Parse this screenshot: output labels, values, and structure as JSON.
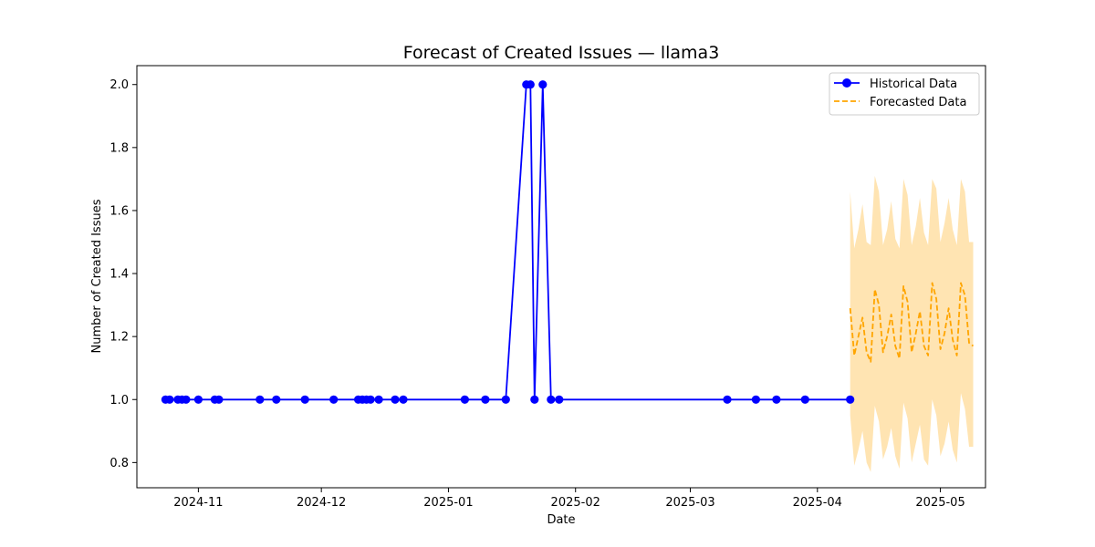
{
  "chart_data": {
    "type": "line",
    "title": "Forecast of Created Issues — llama3",
    "xlabel": "Date",
    "ylabel": "Number of Created Issues",
    "xlim": [
      "2024-10-17",
      "2025-05-12"
    ],
    "ylim": [
      0.72,
      2.06
    ],
    "x_ticks": [
      {
        "date": "2024-11-01",
        "label": "2024-11"
      },
      {
        "date": "2024-12-01",
        "label": "2024-12"
      },
      {
        "date": "2025-01-01",
        "label": "2025-01"
      },
      {
        "date": "2025-02-01",
        "label": "2025-02"
      },
      {
        "date": "2025-03-01",
        "label": "2025-03"
      },
      {
        "date": "2025-04-01",
        "label": "2025-04"
      },
      {
        "date": "2025-05-01",
        "label": "2025-05"
      }
    ],
    "y_ticks": [
      {
        "value": 0.8,
        "label": "0.8"
      },
      {
        "value": 1.0,
        "label": "1.0"
      },
      {
        "value": 1.2,
        "label": "1.2"
      },
      {
        "value": 1.4,
        "label": "1.4"
      },
      {
        "value": 1.6,
        "label": "1.6"
      },
      {
        "value": 1.8,
        "label": "1.8"
      },
      {
        "value": 2.0,
        "label": "2.0"
      }
    ],
    "grid": false,
    "legend": "upper right",
    "series": [
      {
        "name": "Historical Data",
        "color": "#0000ff",
        "style": "solid",
        "marker": "circle",
        "x": [
          "2024-10-24",
          "2024-10-25",
          "2024-10-27",
          "2024-10-28",
          "2024-10-29",
          "2024-11-01",
          "2024-11-05",
          "2024-11-06",
          "2024-11-16",
          "2024-11-20",
          "2024-11-27",
          "2024-12-04",
          "2024-12-10",
          "2024-12-11",
          "2024-12-12",
          "2024-12-13",
          "2024-12-15",
          "2024-12-19",
          "2024-12-21",
          "2025-01-05",
          "2025-01-10",
          "2025-01-15",
          "2025-01-20",
          "2025-01-21",
          "2025-01-22",
          "2025-01-24",
          "2025-01-26",
          "2025-01-28",
          "2025-03-10",
          "2025-03-17",
          "2025-03-22",
          "2025-03-29",
          "2025-04-09"
        ],
        "y": [
          1,
          1,
          1,
          1,
          1,
          1,
          1,
          1,
          1,
          1,
          1,
          1,
          1,
          1,
          1,
          1,
          1,
          1,
          1,
          1,
          1,
          1,
          2,
          2,
          1,
          2,
          1,
          1,
          1,
          1,
          1,
          1,
          1
        ]
      },
      {
        "name": "Forecasted Data",
        "color": "#ffa500",
        "style": "dashed",
        "marker": "none",
        "x": [
          "2025-04-09",
          "2025-04-10",
          "2025-04-11",
          "2025-04-12",
          "2025-04-13",
          "2025-04-14",
          "2025-04-15",
          "2025-04-16",
          "2025-04-17",
          "2025-04-18",
          "2025-04-19",
          "2025-04-20",
          "2025-04-21",
          "2025-04-22",
          "2025-04-23",
          "2025-04-24",
          "2025-04-25",
          "2025-04-26",
          "2025-04-27",
          "2025-04-28",
          "2025-04-29",
          "2025-04-30",
          "2025-05-01",
          "2025-05-02",
          "2025-05-03",
          "2025-05-04",
          "2025-05-05",
          "2025-05-06",
          "2025-05-07",
          "2025-05-08",
          "2025-05-09"
        ],
        "y": [
          1.29,
          1.14,
          1.2,
          1.26,
          1.15,
          1.12,
          1.35,
          1.3,
          1.15,
          1.2,
          1.27,
          1.17,
          1.13,
          1.36,
          1.31,
          1.15,
          1.21,
          1.28,
          1.17,
          1.14,
          1.37,
          1.32,
          1.16,
          1.21,
          1.29,
          1.19,
          1.14,
          1.37,
          1.33,
          1.18,
          1.17
        ],
        "lower": [
          0.95,
          0.79,
          0.84,
          0.9,
          0.8,
          0.77,
          0.98,
          0.93,
          0.81,
          0.85,
          0.91,
          0.82,
          0.78,
          0.99,
          0.94,
          0.8,
          0.86,
          0.92,
          0.81,
          0.79,
          1.0,
          0.95,
          0.82,
          0.86,
          0.93,
          0.84,
          0.8,
          1.02,
          0.97,
          0.85,
          0.85
        ],
        "upper": [
          1.66,
          1.48,
          1.54,
          1.62,
          1.5,
          1.49,
          1.71,
          1.66,
          1.49,
          1.54,
          1.63,
          1.51,
          1.48,
          1.7,
          1.65,
          1.49,
          1.55,
          1.64,
          1.53,
          1.49,
          1.7,
          1.67,
          1.5,
          1.56,
          1.64,
          1.54,
          1.49,
          1.7,
          1.66,
          1.5,
          1.5
        ],
        "band_color": "#ffa500",
        "band_opacity": 0.3
      }
    ]
  }
}
